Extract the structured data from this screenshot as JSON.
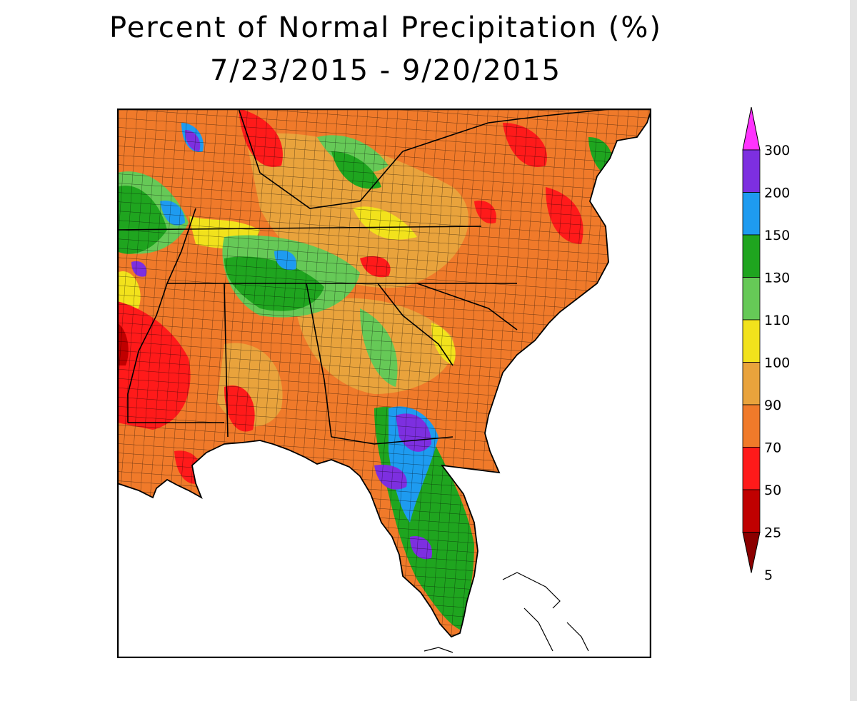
{
  "title": {
    "line1": "Percent of Normal Precipitation (%)",
    "line2": "7/23/2015 - 9/20/2015"
  },
  "colors": {
    "brown": "#8b0000",
    "darkred": "#c00000",
    "red": "#ff1a1a",
    "dorange": "#f07a2a",
    "lorange": "#e9a33c",
    "yellow": "#f2e21c",
    "lgreen": "#66c957",
    "green": "#1fa51f",
    "blue": "#1e9bf0",
    "purple": "#7d2fe0",
    "magenta": "#ff33ff",
    "water": "#ffffff",
    "boundary": "#000000"
  },
  "legend": {
    "items": [
      {
        "label": "300",
        "color": "#ff33ff"
      },
      {
        "label": "200",
        "color": "#7d2fe0"
      },
      {
        "label": "150",
        "color": "#1e9bf0"
      },
      {
        "label": "130",
        "color": "#1fa51f"
      },
      {
        "label": "110",
        "color": "#66c957"
      },
      {
        "label": "100",
        "color": "#f2e21c"
      },
      {
        "label": "90",
        "color": "#e9a33c"
      },
      {
        "label": "70",
        "color": "#f07a2a"
      },
      {
        "label": "50",
        "color": "#ff1a1a"
      },
      {
        "label": "25",
        "color": "#c00000"
      },
      {
        "label": "5",
        "color": "#8b0000"
      }
    ]
  }
}
